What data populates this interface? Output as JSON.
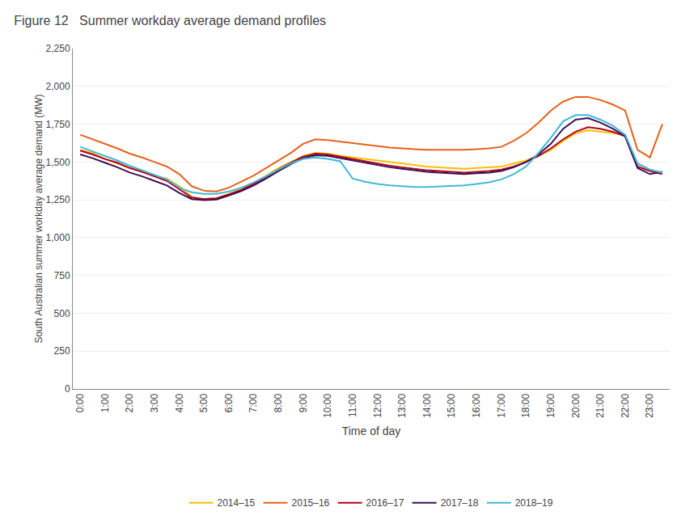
{
  "chart_data": {
    "type": "line",
    "title": "Figure 12   Summer workday average demand profiles",
    "xlabel": "Time of day",
    "ylabel": "South Australian summer workday average demand (MW)",
    "x": [
      0,
      0.5,
      1,
      1.5,
      2,
      2.5,
      3,
      3.5,
      4,
      4.5,
      5,
      5.5,
      6,
      6.5,
      7,
      7.5,
      8,
      8.5,
      9,
      9.5,
      10,
      10.5,
      11,
      11.5,
      12,
      12.5,
      13,
      13.5,
      14,
      14.5,
      15,
      15.5,
      16,
      16.5,
      17,
      17.5,
      18,
      18.5,
      19,
      19.5,
      20,
      20.5,
      21,
      21.5,
      22,
      22.5,
      23,
      23.5
    ],
    "xlim": [
      -0.3,
      23.8
    ],
    "xticks": [
      {
        "value": 0,
        "label": "0:00"
      },
      {
        "value": 1,
        "label": "1:00"
      },
      {
        "value": 2,
        "label": "2:00"
      },
      {
        "value": 3,
        "label": "3:00"
      },
      {
        "value": 4,
        "label": "4:00"
      },
      {
        "value": 5,
        "label": "5:00"
      },
      {
        "value": 6,
        "label": "6:00"
      },
      {
        "value": 7,
        "label": "7:00"
      },
      {
        "value": 8,
        "label": "8:00"
      },
      {
        "value": 9,
        "label": "9:00"
      },
      {
        "value": 10,
        "label": "10:00"
      },
      {
        "value": 11,
        "label": "11:00"
      },
      {
        "value": 12,
        "label": "12:00"
      },
      {
        "value": 13,
        "label": "13:00"
      },
      {
        "value": 14,
        "label": "14:00"
      },
      {
        "value": 15,
        "label": "15:00"
      },
      {
        "value": 16,
        "label": "16:00"
      },
      {
        "value": 17,
        "label": "17:00"
      },
      {
        "value": 18,
        "label": "18:00"
      },
      {
        "value": 19,
        "label": "19:00"
      },
      {
        "value": 20,
        "label": "20:00"
      },
      {
        "value": 21,
        "label": "21:00"
      },
      {
        "value": 22,
        "label": "22:00"
      },
      {
        "value": 23,
        "label": "23:00"
      }
    ],
    "ylim": [
      0,
      2250
    ],
    "yticks": [
      0,
      250,
      500,
      750,
      {
        "value": 1000,
        "label": "1,000"
      },
      {
        "value": 1250,
        "label": "1,250"
      },
      {
        "value": 1500,
        "label": "1,500"
      },
      {
        "value": 1750,
        "label": "1,750"
      },
      {
        "value": 2000,
        "label": "2,000"
      },
      {
        "value": 2250,
        "label": "2,250"
      }
    ],
    "grid": "y",
    "legend": "bottom",
    "series": [
      {
        "name": "2014–15",
        "color": "#F5C000",
        "values": [
          1580,
          1560,
          1520,
          1490,
          1460,
          1440,
          1410,
          1390,
          1340,
          1270,
          1255,
          1260,
          1290,
          1320,
          1360,
          1410,
          1460,
          1500,
          1540,
          1560,
          1555,
          1540,
          1530,
          1520,
          1510,
          1500,
          1490,
          1480,
          1470,
          1465,
          1460,
          1455,
          1460,
          1465,
          1470,
          1490,
          1510,
          1540,
          1580,
          1640,
          1690,
          1710,
          1700,
          1690,
          1680,
          1490,
          1450,
          1430
        ]
      },
      {
        "name": "2015–16",
        "color": "#E8601A",
        "values": [
          1680,
          1650,
          1620,
          1590,
          1555,
          1530,
          1500,
          1470,
          1420,
          1340,
          1310,
          1305,
          1330,
          1370,
          1410,
          1460,
          1510,
          1560,
          1620,
          1650,
          1645,
          1635,
          1625,
          1615,
          1605,
          1595,
          1590,
          1585,
          1580,
          1580,
          1580,
          1580,
          1585,
          1590,
          1600,
          1640,
          1690,
          1760,
          1840,
          1900,
          1930,
          1930,
          1910,
          1880,
          1840,
          1580,
          1530,
          1750
        ]
      },
      {
        "name": "2016–17",
        "color": "#B5001E",
        "values": [
          1575,
          1550,
          1520,
          1495,
          1460,
          1435,
          1405,
          1375,
          1320,
          1265,
          1255,
          1260,
          1285,
          1315,
          1355,
          1400,
          1450,
          1495,
          1535,
          1555,
          1550,
          1535,
          1520,
          1505,
          1490,
          1475,
          1465,
          1455,
          1445,
          1440,
          1435,
          1430,
          1435,
          1440,
          1450,
          1470,
          1500,
          1540,
          1590,
          1650,
          1700,
          1730,
          1720,
          1700,
          1670,
          1470,
          1440,
          1420
        ]
      },
      {
        "name": "2017–18",
        "color": "#3B1054",
        "values": [
          1550,
          1525,
          1495,
          1465,
          1430,
          1405,
          1375,
          1345,
          1295,
          1255,
          1248,
          1252,
          1278,
          1308,
          1345,
          1390,
          1440,
          1485,
          1525,
          1545,
          1540,
          1525,
          1510,
          1495,
          1480,
          1465,
          1455,
          1445,
          1435,
          1430,
          1425,
          1420,
          1425,
          1430,
          1440,
          1465,
          1500,
          1550,
          1620,
          1720,
          1780,
          1790,
          1760,
          1720,
          1670,
          1460,
          1420,
          1435
        ]
      },
      {
        "name": "2018–19",
        "color": "#40B8DC",
        "values": [
          1600,
          1570,
          1540,
          1510,
          1475,
          1445,
          1415,
          1385,
          1330,
          1300,
          1290,
          1290,
          1305,
          1330,
          1365,
          1405,
          1450,
          1490,
          1520,
          1530,
          1520,
          1505,
          1390,
          1370,
          1355,
          1345,
          1340,
          1335,
          1335,
          1338,
          1340,
          1345,
          1355,
          1365,
          1385,
          1420,
          1470,
          1560,
          1660,
          1770,
          1810,
          1810,
          1780,
          1740,
          1680,
          1490,
          1450,
          1430
        ]
      }
    ]
  }
}
